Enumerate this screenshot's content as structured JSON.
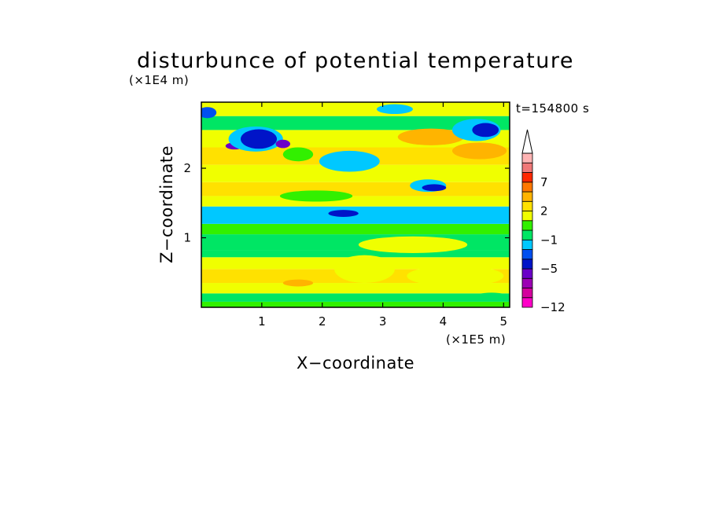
{
  "chart_data": {
    "type": "heatmap",
    "title": "disturbunce of potential temperature",
    "xlabel": "X−coordinate",
    "ylabel": "Z−coordinate",
    "x_scale_note": "(×1E5 m)",
    "y_scale_note": "(×1E4 m)",
    "time_label": "t=154800 s",
    "xlim": [
      0,
      5.1
    ],
    "ylim": [
      0,
      2.95
    ],
    "x_ticks": [
      1,
      2,
      3,
      4,
      5
    ],
    "y_ticks": [
      1,
      2
    ],
    "x_tick_labels": [
      "1",
      "2",
      "3",
      "4",
      "5"
    ],
    "y_tick_labels": [
      "1",
      "2"
    ],
    "colorbar": {
      "levels": [
        -12,
        -11,
        -10,
        -9,
        -5,
        -4,
        -3,
        -1,
        0,
        1,
        2,
        3,
        4,
        7,
        8,
        9
      ],
      "tick_values": [
        7,
        2,
        -1,
        -5,
        -12
      ],
      "tick_labels": [
        "7",
        "2",
        "−1",
        "−5",
        "−12"
      ],
      "colors": [
        "#ff00c8",
        "#d4009e",
        "#9c00b4",
        "#6a00c8",
        "#0014c8",
        "#0050f0",
        "#00c8ff",
        "#00e664",
        "#32f000",
        "#f0ff00",
        "#ffe100",
        "#ffb400",
        "#ff7800",
        "#ff2800",
        "#f07878",
        "#ffb4b4"
      ],
      "extend": "max"
    },
    "bands": [
      {
        "z0": 0.0,
        "z1": 0.08,
        "value": 0.5
      },
      {
        "z0": 0.08,
        "z1": 0.2,
        "value": -0.5
      },
      {
        "z0": 0.2,
        "z1": 0.35,
        "value": 1.5
      },
      {
        "z0": 0.35,
        "z1": 0.55,
        "value": 2.5
      },
      {
        "z0": 0.55,
        "z1": 0.72,
        "value": 1.5
      },
      {
        "z0": 0.72,
        "z1": 0.82,
        "value": -0.5
      },
      {
        "z0": 0.82,
        "z1": 1.05,
        "value": -0.5
      },
      {
        "z0": 1.05,
        "z1": 1.2,
        "value": 0.5
      },
      {
        "z0": 1.2,
        "z1": 1.45,
        "value": -2
      },
      {
        "z0": 1.45,
        "z1": 1.6,
        "value": 1.5
      },
      {
        "z0": 1.6,
        "z1": 1.8,
        "value": 2.5
      },
      {
        "z0": 1.8,
        "z1": 2.05,
        "value": 1.5
      },
      {
        "z0": 2.05,
        "z1": 2.3,
        "value": 2.5
      },
      {
        "z0": 2.3,
        "z1": 2.55,
        "value": 1.5
      },
      {
        "z0": 2.55,
        "z1": 2.75,
        "value": -0.5
      },
      {
        "z0": 2.75,
        "z1": 2.95,
        "value": 1.5
      }
    ],
    "features": [
      {
        "x": 0.1,
        "z": 2.8,
        "rx": 0.15,
        "rz": 0.08,
        "value": -3.5
      },
      {
        "x": 0.55,
        "z": 2.32,
        "rx": 0.15,
        "rz": 0.05,
        "value": -7
      },
      {
        "x": 0.9,
        "z": 2.42,
        "rx": 0.45,
        "rz": 0.18,
        "value": -1.5
      },
      {
        "x": 0.95,
        "z": 2.42,
        "rx": 0.3,
        "rz": 0.14,
        "value": -4.5
      },
      {
        "x": 1.35,
        "z": 2.35,
        "rx": 0.12,
        "rz": 0.06,
        "value": -7
      },
      {
        "x": 1.6,
        "z": 2.2,
        "rx": 0.25,
        "rz": 0.1,
        "value": 0.5
      },
      {
        "x": 2.45,
        "z": 2.1,
        "rx": 0.5,
        "rz": 0.15,
        "value": -1.5
      },
      {
        "x": 2.35,
        "z": 1.35,
        "rx": 0.25,
        "rz": 0.05,
        "value": -5
      },
      {
        "x": 1.9,
        "z": 1.6,
        "rx": 0.6,
        "rz": 0.08,
        "value": 0.5
      },
      {
        "x": 3.75,
        "z": 1.75,
        "rx": 0.3,
        "rz": 0.09,
        "value": -1.5
      },
      {
        "x": 3.85,
        "z": 1.72,
        "rx": 0.2,
        "rz": 0.05,
        "value": -4.5
      },
      {
        "x": 3.8,
        "z": 2.45,
        "rx": 0.55,
        "rz": 0.12,
        "value": 3.5
      },
      {
        "x": 4.6,
        "z": 2.25,
        "rx": 0.45,
        "rz": 0.12,
        "value": 3.5
      },
      {
        "x": 4.55,
        "z": 2.55,
        "rx": 0.4,
        "rz": 0.16,
        "value": -1.5
      },
      {
        "x": 4.7,
        "z": 2.55,
        "rx": 0.22,
        "rz": 0.1,
        "value": -4.5
      },
      {
        "x": 3.2,
        "z": 2.85,
        "rx": 0.3,
        "rz": 0.07,
        "value": -1.5
      },
      {
        "x": 3.5,
        "z": 0.9,
        "rx": 0.9,
        "rz": 0.12,
        "value": 1.5
      },
      {
        "x": 2.7,
        "z": 0.55,
        "rx": 0.5,
        "rz": 0.2,
        "value": 1.5
      },
      {
        "x": 4.2,
        "z": 0.45,
        "rx": 0.8,
        "rz": 0.15,
        "value": 1.5
      },
      {
        "x": 4.8,
        "z": 0.15,
        "rx": 0.3,
        "rz": 0.06,
        "value": -0.5
      },
      {
        "x": 1.6,
        "z": 0.35,
        "rx": 0.25,
        "rz": 0.05,
        "value": 3.5
      }
    ]
  }
}
